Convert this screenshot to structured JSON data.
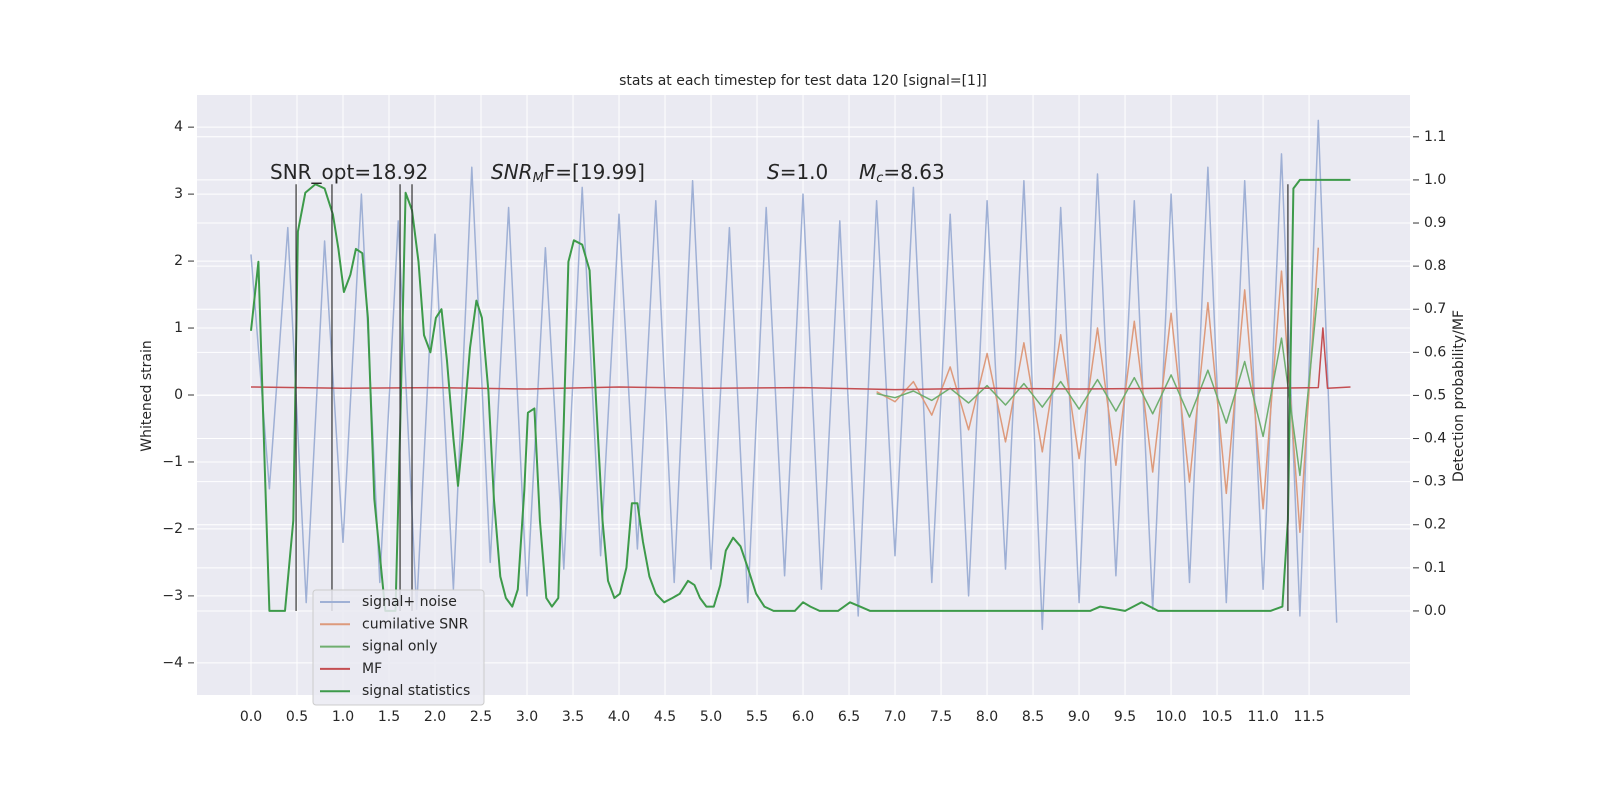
{
  "chart_data": {
    "type": "line",
    "title": "stats at each timestep for test data 120 [signal=[1]]",
    "ylabel": "Whitened strain",
    "y2label": "Detection probability/MF",
    "annotations": [
      [
        {
          "text": "SNR_opt=18.92"
        }
      ],
      [
        {
          "text": "SNR",
          "italic": true
        },
        {
          "text": "M",
          "italic": true,
          "sub": true
        },
        {
          "text": "F=[19.99]"
        }
      ],
      [
        {
          "text": "S",
          "italic": true
        },
        {
          "text": "=1.0"
        }
      ],
      [
        {
          "text": "M",
          "italic": true
        },
        {
          "text": "c",
          "italic": true,
          "sub": true
        },
        {
          "text": "=8.63"
        }
      ]
    ],
    "xlim": [
      -0.587,
      12.597
    ],
    "ylim": [
      -4.48,
      4.48
    ],
    "y2lim": [
      -0.195,
      1.197
    ],
    "grid": true,
    "legend": "lower left",
    "xticks": [
      {
        "value": 0,
        "label": "0.0"
      },
      {
        "value": 0.5,
        "label": "0.5"
      },
      {
        "value": 1,
        "label": "1.0"
      },
      {
        "value": 1.5,
        "label": "1.5"
      },
      {
        "value": 2,
        "label": "2.0"
      },
      {
        "value": 2.5,
        "label": "2.5"
      },
      {
        "value": 3,
        "label": "3.0"
      },
      {
        "value": 3.5,
        "label": "3.5"
      },
      {
        "value": 4,
        "label": "4.0"
      },
      {
        "value": 4.5,
        "label": "4.5"
      },
      {
        "value": 5,
        "label": "5.0"
      },
      {
        "value": 5.5,
        "label": "5.5"
      },
      {
        "value": 6,
        "label": "6.0"
      },
      {
        "value": 6.5,
        "label": "6.5"
      },
      {
        "value": 7,
        "label": "7.0"
      },
      {
        "value": 7.5,
        "label": "7.5"
      },
      {
        "value": 8,
        "label": "8.0"
      },
      {
        "value": 8.5,
        "label": "8.5"
      },
      {
        "value": 9,
        "label": "9.0"
      },
      {
        "value": 9.5,
        "label": "9.5"
      },
      {
        "value": 10,
        "label": "10.0"
      },
      {
        "value": 10.5,
        "label": "10.5"
      },
      {
        "value": 11,
        "label": "11.0"
      },
      {
        "value": 11.5,
        "label": "11.5"
      }
    ],
    "yticks": [
      {
        "value": -4,
        "label": "−4"
      },
      {
        "value": -3,
        "label": "−3"
      },
      {
        "value": -2,
        "label": "−2"
      },
      {
        "value": -1,
        "label": "−1"
      },
      0,
      1,
      2,
      3,
      4
    ],
    "y2ticks": [
      {
        "value": 0,
        "label": "0.0"
      },
      {
        "value": 0.1,
        "label": "0.1"
      },
      {
        "value": 0.2,
        "label": "0.2"
      },
      {
        "value": 0.3,
        "label": "0.3"
      },
      {
        "value": 0.4,
        "label": "0.4"
      },
      {
        "value": 0.5,
        "label": "0.5"
      },
      {
        "value": 0.6,
        "label": "0.6"
      },
      {
        "value": 0.7,
        "label": "0.7"
      },
      {
        "value": 0.8,
        "label": "0.8"
      },
      {
        "value": 0.9,
        "label": "0.9"
      },
      {
        "value": 1,
        "label": "1.0"
      },
      {
        "value": 1.1,
        "label": "1.1"
      }
    ],
    "series": [
      {
        "name": "signal+ noise",
        "color": "#9fb0d5",
        "x": [
          0,
          0.2,
          0.4,
          0.6,
          0.8,
          1,
          1.2,
          1.4,
          1.6,
          1.8,
          2,
          2.2,
          2.4,
          2.6,
          2.8,
          3,
          3.2,
          3.4,
          3.6,
          3.8,
          4,
          4.2,
          4.4,
          4.6,
          4.8,
          5,
          5.2,
          5.4,
          5.6,
          5.8,
          6,
          6.2,
          6.4,
          6.6,
          6.8,
          7,
          7.2,
          7.4,
          7.6,
          7.8,
          8,
          8.2,
          8.4,
          8.6,
          8.8,
          9,
          9.2,
          9.4,
          9.6,
          9.8,
          10,
          10.2,
          10.4,
          10.6,
          10.8,
          11,
          11.2,
          11.4,
          11.6,
          11.8
        ],
        "values": [
          2.1,
          -1.4,
          2.5,
          -3.1,
          2.3,
          -2.2,
          3.0,
          -2.8,
          2.6,
          -3.2,
          2.4,
          -2.9,
          3.4,
          -2.5,
          2.8,
          -3.0,
          2.2,
          -2.6,
          3.1,
          -2.4,
          2.7,
          -2.3,
          2.9,
          -2.8,
          3.2,
          -2.6,
          2.5,
          -3.1,
          2.8,
          -2.7,
          3.0,
          -2.9,
          2.6,
          -3.3,
          2.9,
          -2.4,
          3.1,
          -2.8,
          2.7,
          -3.0,
          2.9,
          -2.6,
          3.2,
          -3.5,
          2.8,
          -3.1,
          3.3,
          -2.7,
          2.9,
          -3.2,
          3.0,
          -2.8,
          3.4,
          -3.1,
          3.2,
          -2.9,
          3.6,
          -3.3,
          4.1,
          -3.4
        ]
      },
      {
        "name": "cumilative SNR",
        "color": "#dd9a7c",
        "x": [
          6.8,
          7,
          7.2,
          7.4,
          7.6,
          7.8,
          8,
          8.2,
          8.4,
          8.6,
          8.8,
          9,
          9.2,
          9.4,
          9.6,
          9.8,
          10,
          10.2,
          10.4,
          10.6,
          10.8,
          11,
          11.2,
          11.4,
          11.6
        ],
        "values": [
          0.05,
          -0.1,
          0.2,
          -0.3,
          0.42,
          -0.52,
          0.62,
          -0.7,
          0.78,
          -0.85,
          0.9,
          -0.95,
          1.0,
          -1.05,
          1.1,
          -1.15,
          1.22,
          -1.3,
          1.38,
          -1.47,
          1.57,
          -1.7,
          1.85,
          -2.05,
          2.2
        ]
      },
      {
        "name": "signal only",
        "color": "#6fae6f",
        "x": [
          6.8,
          7,
          7.2,
          7.4,
          7.6,
          7.8,
          8,
          8.2,
          8.4,
          8.6,
          8.8,
          9,
          9.2,
          9.4,
          9.6,
          9.8,
          10,
          10.2,
          10.4,
          10.6,
          10.8,
          11,
          11.2,
          11.4,
          11.6
        ],
        "values": [
          0.02,
          -0.04,
          0.06,
          -0.08,
          0.1,
          -0.12,
          0.14,
          -0.15,
          0.17,
          -0.18,
          0.2,
          -0.21,
          0.23,
          -0.24,
          0.26,
          -0.28,
          0.3,
          -0.33,
          0.37,
          -0.42,
          0.5,
          -0.62,
          0.85,
          -1.2,
          1.6
        ]
      },
      {
        "name": "MF",
        "color": "#c44e52",
        "x": [
          0,
          1,
          2,
          3,
          4,
          5,
          6,
          7,
          8,
          9,
          10,
          11,
          11.6,
          11.65,
          11.7,
          11.95
        ],
        "values": [
          0.12,
          0.1,
          0.11,
          0.09,
          0.12,
          0.1,
          0.11,
          0.08,
          0.1,
          0.09,
          0.1,
          0.1,
          0.11,
          1.0,
          0.1,
          0.12
        ]
      },
      {
        "name": "signal statistics",
        "color": "#3d9a4a",
        "axis": "y2",
        "x": [
          0,
          0.08,
          0.15,
          0.2,
          0.37,
          0.46,
          0.51,
          0.59,
          0.7,
          0.8,
          0.89,
          0.95,
          1.01,
          1.08,
          1.14,
          1.21,
          1.27,
          1.34,
          1.46,
          1.57,
          1.62,
          1.68,
          1.75,
          1.82,
          1.88,
          1.95,
          2.01,
          2.07,
          2.13,
          2.2,
          2.25,
          2.3,
          2.38,
          2.45,
          2.51,
          2.58,
          2.64,
          2.71,
          2.77,
          2.84,
          2.9,
          2.97,
          3.01,
          3.08,
          3.14,
          3.21,
          3.27,
          3.34,
          3.4,
          3.45,
          3.51,
          3.6,
          3.68,
          3.75,
          3.82,
          3.88,
          3.95,
          4.01,
          4.08,
          4.14,
          4.2,
          4.26,
          4.33,
          4.4,
          4.49,
          4.58,
          4.66,
          4.75,
          4.82,
          4.88,
          4.95,
          5.03,
          5.1,
          5.16,
          5.24,
          5.32,
          5.4,
          5.49,
          5.58,
          5.68,
          5.91,
          6.0,
          6.08,
          6.18,
          6.38,
          6.51,
          6.62,
          6.73,
          9.12,
          9.23,
          9.5,
          9.68,
          9.86,
          11.08,
          11.21,
          11.27,
          11.33,
          11.4,
          11.95
        ],
        "values": [
          0.65,
          0.81,
          0.33,
          0,
          0,
          0.21,
          0.88,
          0.97,
          0.99,
          0.98,
          0.92,
          0.84,
          0.74,
          0.78,
          0.84,
          0.83,
          0.68,
          0.26,
          0,
          0,
          0.42,
          0.97,
          0.93,
          0.81,
          0.64,
          0.6,
          0.68,
          0.7,
          0.58,
          0.4,
          0.29,
          0.4,
          0.61,
          0.72,
          0.68,
          0.51,
          0.26,
          0.08,
          0.03,
          0.01,
          0.05,
          0.28,
          0.46,
          0.47,
          0.21,
          0.03,
          0.01,
          0.03,
          0.44,
          0.81,
          0.86,
          0.85,
          0.79,
          0.49,
          0.21,
          0.07,
          0.03,
          0.04,
          0.1,
          0.25,
          0.25,
          0.16,
          0.08,
          0.04,
          0.02,
          0.03,
          0.04,
          0.07,
          0.06,
          0.03,
          0.01,
          0.01,
          0.06,
          0.14,
          0.17,
          0.15,
          0.1,
          0.04,
          0.01,
          0,
          0,
          0.02,
          0.01,
          0,
          0,
          0.02,
          0.01,
          0,
          0,
          0.01,
          0,
          0.02,
          0,
          0,
          0.01,
          0.21,
          0.98,
          1.0,
          1.0
        ]
      }
    ],
    "vertical_lines": {
      "x": [
        0.49,
        0.88,
        1.62,
        1.75,
        11.27
      ],
      "y2": [
        0,
        0.99
      ],
      "color": "#333333"
    }
  }
}
